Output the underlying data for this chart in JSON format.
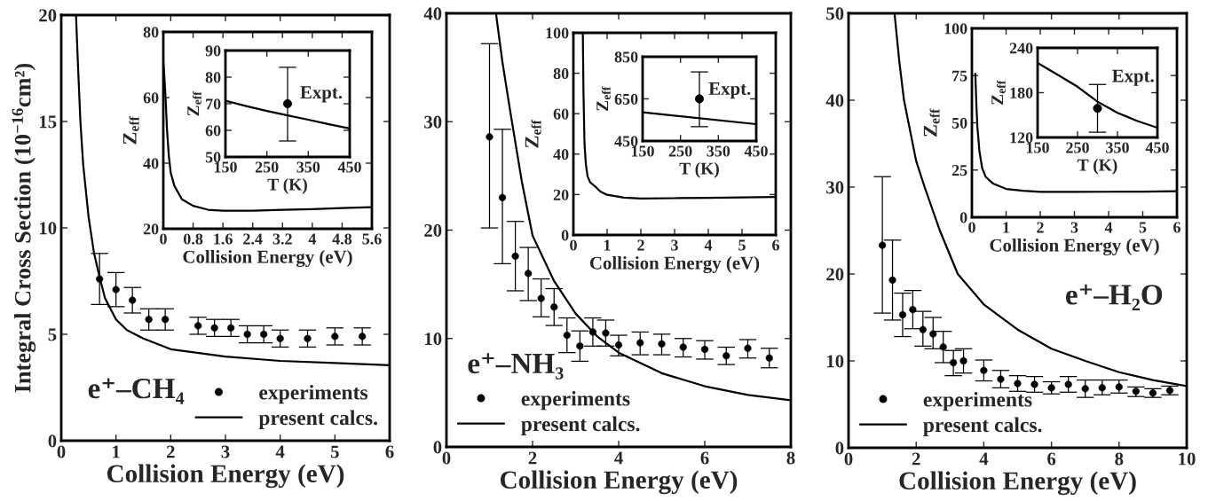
{
  "chart_data": [
    {
      "type": "scatter",
      "xlabel": "Collision Energy (eV)",
      "ylabel": "Integral Cross Section (10$^{−16}$cm²)",
      "xlim": [
        0,
        6
      ],
      "ylim": [
        0,
        20
      ],
      "xticks": [
        0,
        1,
        2,
        3,
        4,
        5,
        6
      ],
      "yticks": [
        0,
        5,
        10,
        15,
        20
      ],
      "legend": "bottom right",
      "annotations": [
        "e⁺–CH₄"
      ],
      "series": [
        {
          "name": "experiments",
          "color": "#000000",
          "marker": "circle",
          "x": [
            0.7,
            1.0,
            1.3,
            1.6,
            1.9,
            2.5,
            2.8,
            3.1,
            3.4,
            3.7,
            4.0,
            4.5,
            5.0,
            5.5
          ],
          "values": [
            7.6,
            7.1,
            6.6,
            5.7,
            5.7,
            5.4,
            5.3,
            5.3,
            5.0,
            5.0,
            4.8,
            4.8,
            4.9,
            4.9
          ],
          "errors": [
            [
              6.4,
              8.8
            ],
            [
              6.3,
              7.9
            ],
            [
              6.0,
              7.2
            ],
            [
              5.2,
              6.2
            ],
            [
              5.2,
              6.2
            ],
            [
              5.0,
              5.8
            ],
            [
              4.9,
              5.7
            ],
            [
              4.9,
              5.7
            ],
            [
              4.6,
              5.4
            ],
            [
              4.6,
              5.4
            ],
            [
              4.4,
              5.2
            ],
            [
              4.4,
              5.2
            ],
            [
              4.5,
              5.3
            ],
            [
              4.5,
              5.3
            ]
          ]
        },
        {
          "name": "present calcs.",
          "type": "line",
          "color": "#000000",
          "line_style": "solid",
          "x": [
            0.27,
            0.3,
            0.35,
            0.4,
            0.5,
            0.6,
            0.7,
            0.8,
            1.0,
            1.2,
            1.5,
            2.0,
            3.0,
            4.0,
            5.0,
            6.0
          ],
          "values": [
            20,
            18,
            15,
            13,
            10.5,
            8.8,
            7.7,
            6.7,
            5.7,
            5.2,
            4.8,
            4.3,
            3.95,
            3.75,
            3.65,
            3.55
          ]
        }
      ]
    },
    {
      "type": "line",
      "xlabel": "Collision Energy (eV)",
      "ylabel": "Z$_{eff}$",
      "xlim": [
        0,
        5.6
      ],
      "ylim": [
        20,
        80
      ],
      "xticks": [
        0,
        0.8,
        1.6,
        2.4,
        3.2,
        4,
        4.8,
        5.6
      ],
      "yticks": [
        20,
        40,
        60,
        80
      ],
      "series": [
        {
          "color": "#000000",
          "line_style": "solid",
          "x": [
            0.0,
            0.03,
            0.06,
            0.1,
            0.15,
            0.2,
            0.3,
            0.5,
            0.8,
            1.2,
            1.6,
            2.4,
            3.2,
            4.0,
            4.8,
            5.6
          ],
          "values": [
            71,
            66,
            60,
            50,
            42,
            37,
            33,
            29,
            27,
            25.8,
            25.5,
            25.5,
            25.8,
            26,
            26.3,
            26.6
          ]
        }
      ]
    },
    {
      "type": "line",
      "xlabel": "T (K)",
      "ylabel": "Z$_{eff}$",
      "xlim": [
        150,
        450
      ],
      "ylim": [
        50,
        90
      ],
      "xticks": [
        150,
        250,
        350,
        450
      ],
      "yticks": [
        50,
        60,
        70,
        80,
        90
      ],
      "annotations": [
        "Expt."
      ],
      "series": [
        {
          "color": "#000000",
          "line_style": "solid",
          "x": [
            150,
            200,
            250,
            300,
            350,
            400,
            450
          ],
          "values": [
            71.1,
            69.1,
            67.3,
            65.6,
            64,
            62.3,
            60.7
          ]
        },
        {
          "type": "scatter",
          "color": "#000000",
          "marker": "circle",
          "x": [
            300
          ],
          "values": [
            70
          ],
          "errors": [
            [
              56,
              83.7
            ]
          ]
        }
      ]
    },
    {
      "type": "scatter",
      "xlabel": "Collision Energy (eV)",
      "xlim": [
        0,
        8
      ],
      "ylim": [
        0,
        40
      ],
      "xticks": [
        0,
        2,
        4,
        6,
        8
      ],
      "yticks": [
        0,
        10,
        20,
        30,
        40
      ],
      "legend": "bottom left",
      "annotations": [
        "e⁺–NH₃"
      ],
      "series": [
        {
          "name": "experiments",
          "color": "#000000",
          "marker": "circle",
          "x": [
            1.0,
            1.3,
            1.6,
            1.9,
            2.2,
            2.5,
            2.8,
            3.1,
            3.4,
            3.7,
            4.0,
            4.5,
            5.0,
            5.5,
            6.0,
            6.5,
            7.0,
            7.5
          ],
          "values": [
            28.6,
            23.0,
            17.6,
            16.0,
            13.7,
            12.9,
            10.3,
            9.3,
            10.6,
            10.5,
            9.4,
            9.6,
            9.5,
            9.2,
            9.0,
            8.4,
            9.1,
            8.2
          ],
          "errors": [
            [
              20.2,
              37.2
            ],
            [
              16.9,
              29.3
            ],
            [
              14.4,
              20.8
            ],
            [
              13.5,
              18.4
            ],
            [
              12.0,
              15.5
            ],
            [
              11.2,
              14.6
            ],
            [
              8.7,
              11.9
            ],
            [
              7.9,
              10.7
            ],
            [
              9.3,
              11.9
            ],
            [
              9.3,
              11.7
            ],
            [
              8.4,
              10.3
            ],
            [
              8.5,
              10.6
            ],
            [
              8.5,
              10.4
            ],
            [
              8.3,
              10.0
            ],
            [
              8.1,
              9.8
            ],
            [
              7.6,
              9.2
            ],
            [
              8.2,
              9.9
            ],
            [
              7.3,
              9.1
            ]
          ]
        },
        {
          "name": "present calcs.",
          "type": "line",
          "color": "#000000",
          "line_style": "solid",
          "x": [
            1.15,
            1.3,
            1.5,
            1.75,
            2.0,
            2.5,
            3.0,
            3.5,
            4.0,
            5.0,
            6.0,
            7.0,
            8.0
          ],
          "values": [
            40,
            35.5,
            30.5,
            24.5,
            19.5,
            15.3,
            12.3,
            10.2,
            8.7,
            6.8,
            5.6,
            4.8,
            4.3
          ]
        }
      ]
    },
    {
      "type": "line",
      "xlabel": "Collision Energy (eV)",
      "ylabel": "Z$_{eff}$",
      "xlim": [
        0,
        6
      ],
      "ylim": [
        0,
        100
      ],
      "xticks": [
        0,
        1,
        2,
        3,
        4,
        5,
        6
      ],
      "yticks": [
        0,
        20,
        40,
        60,
        80,
        100
      ],
      "series": [
        {
          "color": "#000000",
          "line_style": "solid",
          "x": [
            0.28,
            0.3,
            0.33,
            0.37,
            0.42,
            0.5,
            0.66,
            0.8,
            1.0,
            1.5,
            2,
            3,
            4,
            5,
            6
          ],
          "values": [
            100,
            70,
            45,
            35,
            29,
            26,
            23.8,
            21.5,
            19.9,
            18.5,
            18,
            18.2,
            18.4,
            18.6,
            18.8
          ]
        }
      ]
    },
    {
      "type": "line",
      "xlabel": "T (K)",
      "ylabel": "Z$_{eff}$",
      "xlim": [
        150,
        450
      ],
      "ylim": [
        450,
        850
      ],
      "xticks": [
        150,
        250,
        350,
        450
      ],
      "yticks": [
        450,
        650,
        850
      ],
      "annotations": [
        "Expt."
      ],
      "series": [
        {
          "color": "#000000",
          "line_style": "solid",
          "x": [
            150,
            450
          ],
          "values": [
            586,
            530
          ]
        },
        {
          "type": "scatter",
          "color": "#000000",
          "marker": "circle",
          "x": [
            300
          ],
          "values": [
            650
          ],
          "errors": [
            [
              518,
              778
            ]
          ]
        }
      ]
    },
    {
      "type": "scatter",
      "xlabel": "Collision Energy (eV)",
      "xlim": [
        0,
        10
      ],
      "ylim": [
        0,
        50
      ],
      "xticks": [
        0,
        2,
        4,
        6,
        8,
        10
      ],
      "yticks": [
        0,
        10,
        20,
        30,
        40,
        50
      ],
      "legend": "bottom left",
      "annotations": [
        "e⁺–H₂O"
      ],
      "series": [
        {
          "name": "experiments",
          "color": "#000000",
          "marker": "circle",
          "x": [
            1.0,
            1.3,
            1.6,
            1.9,
            2.2,
            2.5,
            2.8,
            3.1,
            3.4,
            4.0,
            4.5,
            5.0,
            5.5,
            6.0,
            6.5,
            7.0,
            7.5,
            8.0,
            8.5,
            9.0,
            9.5
          ],
          "values": [
            23.3,
            19.3,
            15.3,
            15.9,
            13.6,
            13.1,
            11.6,
            9.8,
            10.0,
            8.9,
            7.9,
            7.4,
            7.3,
            6.9,
            7.3,
            6.8,
            6.9,
            7.0,
            6.5,
            6.3,
            6.6
          ],
          "errors": [
            [
              15.5,
              31.2
            ],
            [
              14.7,
              23.9
            ],
            [
              12.8,
              17.8
            ],
            [
              13.7,
              18.1
            ],
            [
              11.7,
              15.7
            ],
            [
              11.4,
              15.0
            ],
            [
              9.8,
              13.4
            ],
            [
              8.3,
              11.2
            ],
            [
              8.6,
              11.4
            ],
            [
              7.7,
              10.1
            ],
            [
              6.9,
              8.9
            ],
            [
              6.5,
              8.3
            ],
            [
              6.4,
              8.2
            ],
            [
              6.2,
              7.6
            ],
            [
              6.4,
              8.2
            ],
            [
              5.8,
              7.8
            ],
            [
              6.1,
              7.8
            ],
            [
              6.3,
              7.8
            ],
            [
              5.9,
              7.0
            ],
            [
              5.8,
              6.8
            ],
            [
              6.1,
              7.1
            ]
          ]
        },
        {
          "name": "present calcs.",
          "type": "line",
          "color": "#000000",
          "line_style": "solid",
          "x": [
            1.36,
            1.5,
            1.64,
            2.0,
            2.25,
            2.7,
            3.23,
            4,
            5,
            6,
            7,
            8,
            9,
            10
          ],
          "values": [
            50,
            44.5,
            40,
            33,
            30,
            25,
            20,
            16.5,
            13.6,
            11.4,
            10,
            8.7,
            7.8,
            7.1
          ]
        }
      ]
    },
    {
      "type": "line",
      "xlabel": "Collision Energy (eV)",
      "ylabel": "Z$_{eff}$",
      "xlim": [
        0,
        6
      ],
      "ylim": [
        0,
        100
      ],
      "xticks": [
        0,
        1,
        2,
        3,
        4,
        5,
        6
      ],
      "yticks": [
        0,
        25,
        50,
        75,
        100
      ],
      "series": [
        {
          "color": "#000000",
          "line_style": "solid",
          "x": [
            0.1,
            0.13,
            0.16,
            0.22,
            0.3,
            0.4,
            0.62,
            1,
            1.5,
            2,
            3,
            4,
            5,
            6
          ],
          "values": [
            76,
            60,
            48,
            35,
            26,
            21.5,
            17.8,
            15,
            14,
            13.4,
            13.4,
            13.5,
            13.6,
            13.8
          ]
        }
      ]
    },
    {
      "type": "line",
      "xlabel": "T (K)",
      "ylabel": "Z$_{eff}$",
      "xlim": [
        150,
        450
      ],
      "ylim": [
        120,
        240
      ],
      "xticks": [
        150,
        250,
        350,
        450
      ],
      "yticks": [
        120,
        180,
        240
      ],
      "annotations": [
        "Expt."
      ],
      "series": [
        {
          "color": "#000000",
          "line_style": "solid",
          "x": [
            150,
            200,
            250,
            300,
            350,
            400,
            450
          ],
          "values": [
            220,
            204,
            188,
            168,
            153,
            142,
            133
          ]
        },
        {
          "type": "scatter",
          "color": "#000000",
          "marker": "circle",
          "x": [
            300
          ],
          "values": [
            159
          ],
          "errors": [
            [
              127,
              191
            ]
          ]
        }
      ]
    }
  ]
}
